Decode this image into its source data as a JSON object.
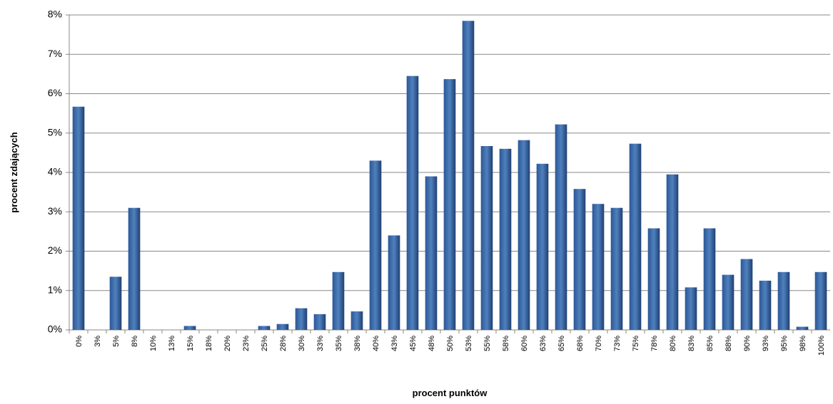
{
  "chart_data": {
    "type": "bar",
    "x_label": "procent punktów",
    "y_label": "procent  zdających",
    "categories": [
      "0%",
      "3%",
      "5%",
      "8%",
      "10%",
      "13%",
      "15%",
      "18%",
      "20%",
      "23%",
      "25%",
      "28%",
      "30%",
      "33%",
      "35%",
      "38%",
      "40%",
      "43%",
      "45%",
      "48%",
      "50%",
      "53%",
      "55%",
      "58%",
      "60%",
      "63%",
      "65%",
      "68%",
      "70%",
      "73%",
      "75%",
      "78%",
      "80%",
      "83%",
      "85%",
      "88%",
      "90%",
      "93%",
      "95%",
      "98%",
      "100%"
    ],
    "values": [
      5.67,
      0,
      1.35,
      3.1,
      0,
      0,
      0.1,
      0,
      0,
      0,
      0.1,
      0.15,
      0.55,
      0.4,
      1.47,
      0.47,
      4.3,
      2.4,
      6.45,
      3.9,
      6.37,
      7.85,
      4.67,
      4.6,
      4.82,
      4.22,
      5.22,
      3.58,
      3.2,
      3.1,
      4.73,
      2.58,
      3.95,
      1.08,
      2.58,
      1.4,
      1.8,
      1.25,
      1.47,
      0.08,
      1.47
    ],
    "color": "#4f81bd",
    "ylim": [
      0,
      8
    ],
    "yticks": [
      {
        "value": 0,
        "label": "0%"
      },
      {
        "value": 1,
        "label": "1%"
      },
      {
        "value": 2,
        "label": "2%"
      },
      {
        "value": 3,
        "label": "3%"
      },
      {
        "value": 4,
        "label": "4%"
      },
      {
        "value": 5,
        "label": "5%"
      },
      {
        "value": 6,
        "label": "6%"
      },
      {
        "value": 7,
        "label": "7%"
      },
      {
        "value": 8,
        "label": "8%"
      }
    ],
    "grid": true
  }
}
